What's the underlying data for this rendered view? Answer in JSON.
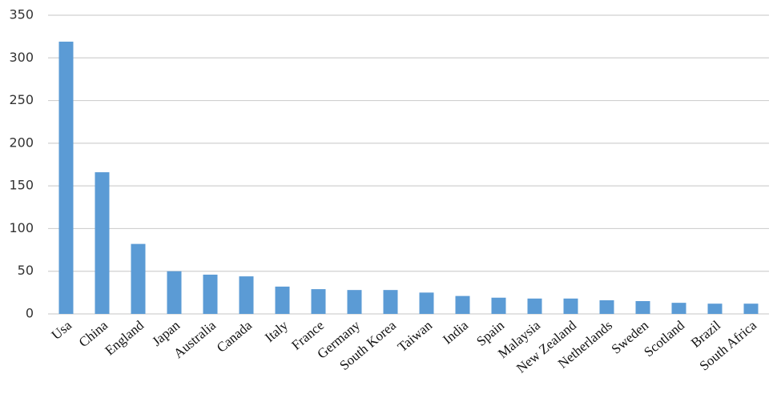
{
  "chart_data": {
    "type": "bar",
    "categories": [
      "Usa",
      "China",
      "England",
      "Japan",
      "Australia",
      "Canada",
      "Italy",
      "France",
      "Germany",
      "South Korea",
      "Taiwan",
      "India",
      "Spain",
      "Malaysia",
      "New Zealand",
      "Netherlands",
      "Sweden",
      "Scotland",
      "Brazil",
      "South Africa"
    ],
    "values": [
      319,
      166,
      82,
      50,
      46,
      44,
      32,
      29,
      28,
      28,
      25,
      21,
      19,
      18,
      18,
      16,
      15,
      13,
      12,
      12
    ],
    "color": "#5b9bd5",
    "ylim": [
      0,
      350
    ],
    "yticks": [
      0,
      50,
      100,
      150,
      200,
      250,
      300,
      350
    ],
    "grid": true
  }
}
